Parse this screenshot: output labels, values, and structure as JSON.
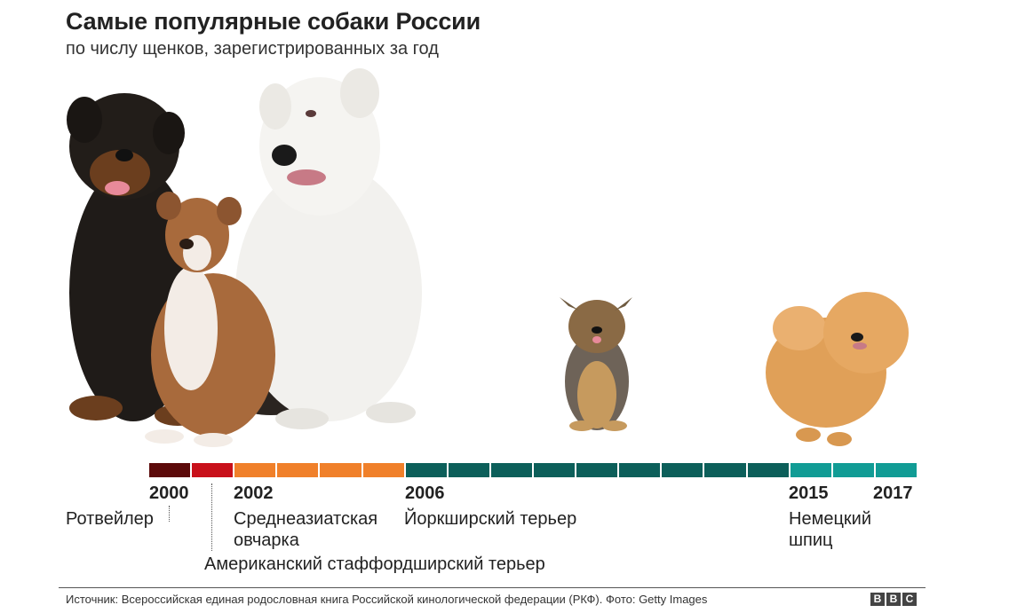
{
  "header": {
    "title": "Самые популярные собаки России",
    "subtitle": "по числу щенков, зарегистрированных за год"
  },
  "timeline": {
    "segment_colors": [
      "#5c0a0a",
      "#c8101a",
      "#f0802a",
      "#f0802a",
      "#f0802a",
      "#f0802a",
      "#0c5f5a",
      "#0c5f5a",
      "#0c5f5a",
      "#0c5f5a",
      "#0c5f5a",
      "#0c5f5a",
      "#0c5f5a",
      "#0c5f5a",
      "#0c5f5a",
      "#119c95",
      "#119c95",
      "#119c95"
    ],
    "years": {
      "y2000": "2000",
      "y2002": "2002",
      "y2006": "2006",
      "y2015": "2015",
      "y2017": "2017"
    }
  },
  "breeds": {
    "rottweiler": "Ротвейлер",
    "central_asian_line1": "Среднеазиатская",
    "central_asian_line2": "овчарка",
    "am_staff": "Американский стаффордширский терьер",
    "yorkshire": "Йоркширский терьер",
    "spitz_line1": "Немецкий",
    "spitz_line2": "шпиц"
  },
  "footer": {
    "source": "Источник: Всероссийская единая родословная книга Российской кинологической федерации (РКФ). Фото: Getty Images",
    "logo_letters": [
      "B",
      "B",
      "C"
    ]
  }
}
